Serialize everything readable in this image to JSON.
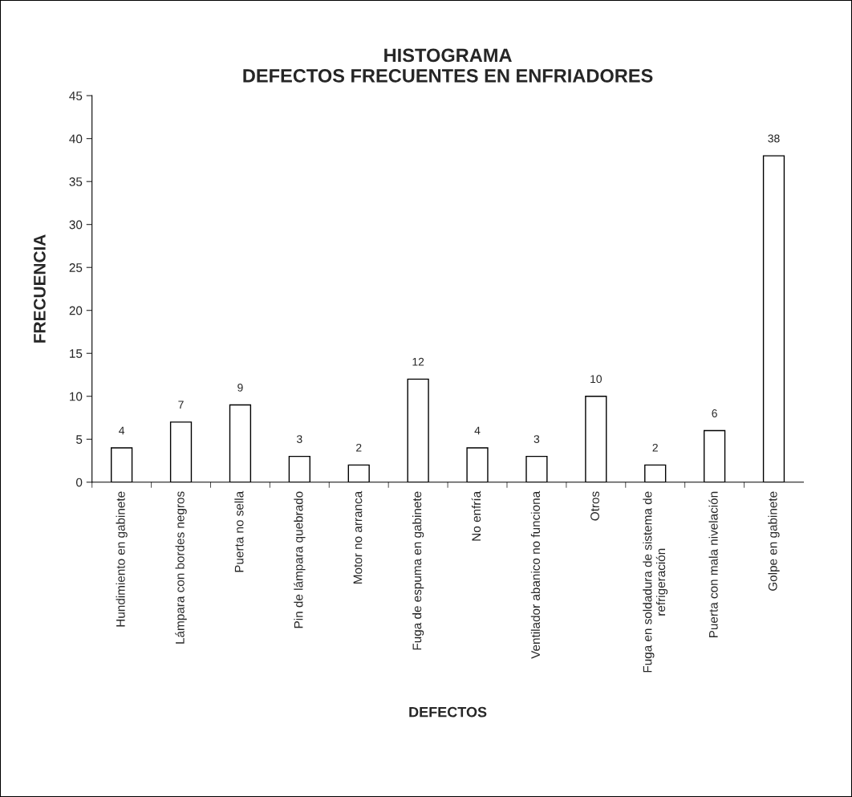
{
  "chart_data": {
    "type": "bar",
    "title": "HISTOGRAMA\nDEFECTOS FRECUENTES EN ENFRIADORES",
    "xlabel": "DEFECTOS",
    "ylabel": "FRECUENCIA",
    "categories": [
      "Hundimiento en gabinete",
      "Lámpara con bordes negros",
      "Puerta no sella",
      "Pin de lámpara quebrado",
      "Motor no arranca",
      "Fuga de espuma en gabinete",
      "No enfría",
      "Ventilador abanico no funciona",
      "Otros",
      "Fuga en soldadura de sistema de refrigeración",
      "Puerta con mala nivelación",
      "Golpe en gabinete"
    ],
    "values": [
      4,
      7,
      9,
      3,
      2,
      12,
      4,
      3,
      10,
      2,
      6,
      38
    ],
    "color": "#ffffff",
    "ylim": [
      0,
      45
    ],
    "yticks": [
      0,
      5,
      10,
      15,
      20,
      25,
      30,
      35,
      40,
      45
    ],
    "data_labels": true,
    "grid": false,
    "legend": false
  }
}
